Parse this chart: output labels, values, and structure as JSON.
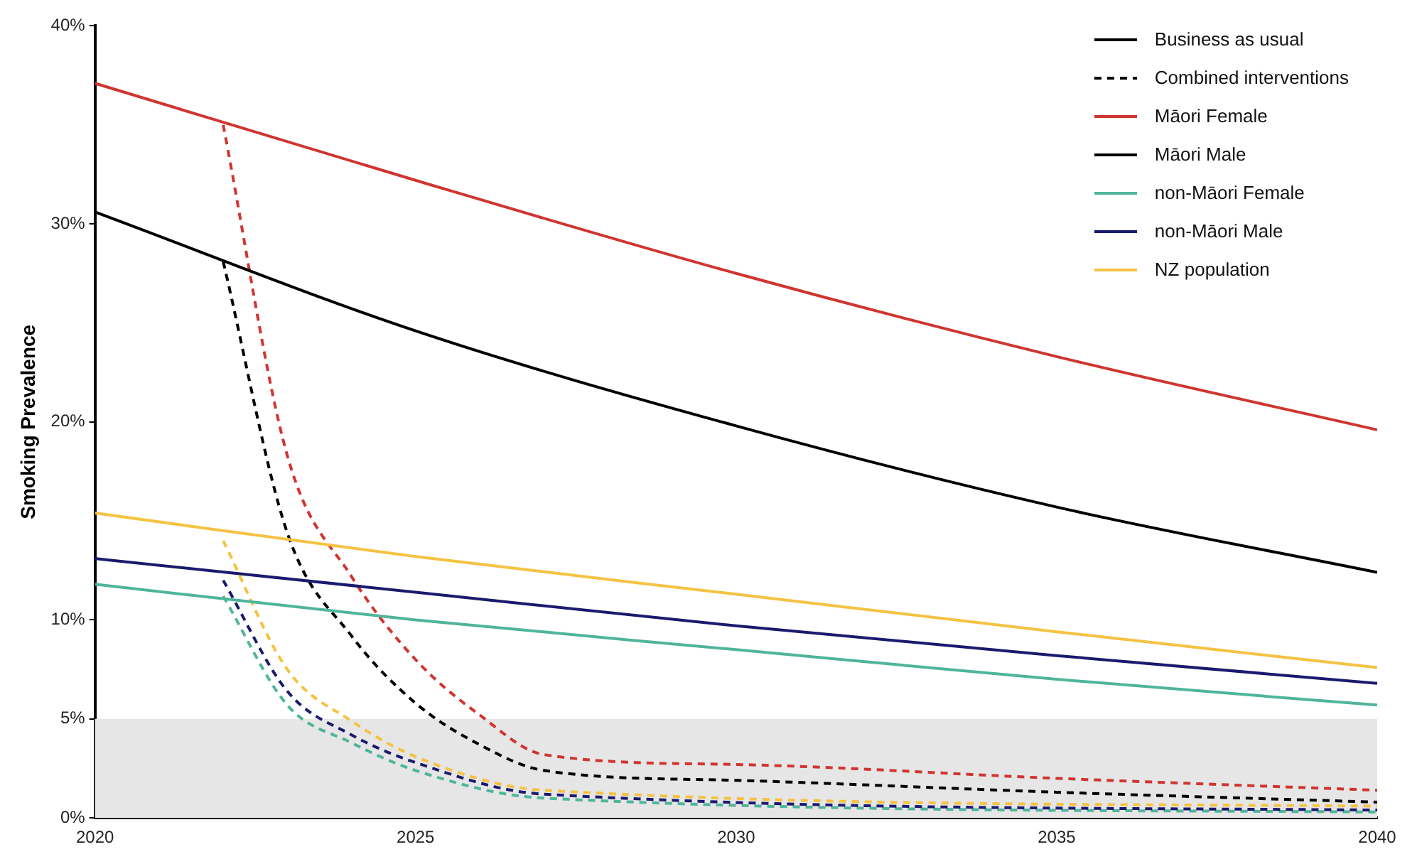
{
  "chart_data": {
    "type": "line",
    "ylabel": "Smoking Prevalence",
    "xlim": [
      2020,
      2040
    ],
    "xticks": [
      2020,
      2025,
      2030,
      2035,
      2040
    ],
    "ylim": [
      0,
      40
    ],
    "yticks": [
      {
        "value": 0,
        "label": "0%"
      },
      {
        "value": 5,
        "label": "5%"
      },
      {
        "value": 10,
        "label": "10%"
      },
      {
        "value": 20,
        "label": "20%"
      },
      {
        "value": 30,
        "label": "30%"
      },
      {
        "value": 40,
        "label": "40%"
      }
    ],
    "grid": false,
    "legend": "top right",
    "marker": "none",
    "bands": [
      {
        "axis": "y",
        "from": 0,
        "to": 5,
        "color": "#e6e6e6"
      }
    ],
    "series": [
      {
        "name": "Business as usual",
        "color": "#000000",
        "line_style": "solid"
      },
      {
        "name": "Combined interventions",
        "color": "#000000",
        "line_style": "dashed"
      },
      {
        "name": "Māori Female",
        "color": "#d03530",
        "line_style": "solid",
        "x": [
          2020,
          2025,
          2030,
          2035,
          2040
        ],
        "values": [
          37.1,
          32.2,
          27.5,
          23.3,
          19.6
        ]
      },
      {
        "name": "Māori Male",
        "color": "#000000",
        "line_style": "solid",
        "x": [
          2020,
          2025,
          2030,
          2035,
          2040
        ],
        "values": [
          30.6,
          24.6,
          19.8,
          15.7,
          12.4
        ]
      },
      {
        "name": "non-Māori Female",
        "color": "#4fb59a",
        "line_style": "solid",
        "x": [
          2020,
          2025,
          2030,
          2035,
          2040
        ],
        "values": [
          11.8,
          10.0,
          8.5,
          7.0,
          5.7
        ]
      },
      {
        "name": "non-Māori Male",
        "color": "#1a1a6e",
        "line_style": "solid",
        "x": [
          2020,
          2025,
          2030,
          2035,
          2040
        ],
        "values": [
          13.1,
          11.4,
          9.7,
          8.2,
          6.8
        ]
      },
      {
        "name": "NZ population",
        "color": "#f5c242",
        "line_style": "solid",
        "x": [
          2020,
          2025,
          2030,
          2035,
          2040
        ],
        "values": [
          15.4,
          13.2,
          11.3,
          9.4,
          7.6
        ]
      },
      {
        "color": "#d03530",
        "line_style": "dashed",
        "x": [
          2022,
          2023,
          2024,
          2025,
          2026,
          2027,
          2030,
          2035,
          2040
        ],
        "values": [
          35.0,
          18.3,
          12.2,
          8.0,
          5.2,
          3.2,
          2.7,
          2.0,
          1.4
        ]
      },
      {
        "color": "#000000",
        "line_style": "dashed",
        "x": [
          2022,
          2023,
          2024,
          2025,
          2026,
          2027,
          2030,
          2035,
          2040
        ],
        "values": [
          28.1,
          14.4,
          9.2,
          5.8,
          3.7,
          2.4,
          1.9,
          1.3,
          0.8
        ]
      },
      {
        "color": "#f5c242",
        "line_style": "dashed",
        "x": [
          2022,
          2023,
          2024,
          2025,
          2027,
          2040
        ],
        "values": [
          14.0,
          7.5,
          4.9,
          3.1,
          1.4,
          0.6
        ]
      },
      {
        "color": "#1a1a6e",
        "line_style": "dashed",
        "x": [
          2022,
          2023,
          2024,
          2025,
          2027,
          2040
        ],
        "values": [
          12.0,
          6.4,
          4.2,
          2.8,
          1.2,
          0.4
        ]
      },
      {
        "color": "#4fb59a",
        "line_style": "dashed",
        "x": [
          2022,
          2023,
          2024,
          2025,
          2027,
          2040
        ],
        "values": [
          11.2,
          5.7,
          3.8,
          2.4,
          1.0,
          0.3
        ]
      }
    ]
  }
}
